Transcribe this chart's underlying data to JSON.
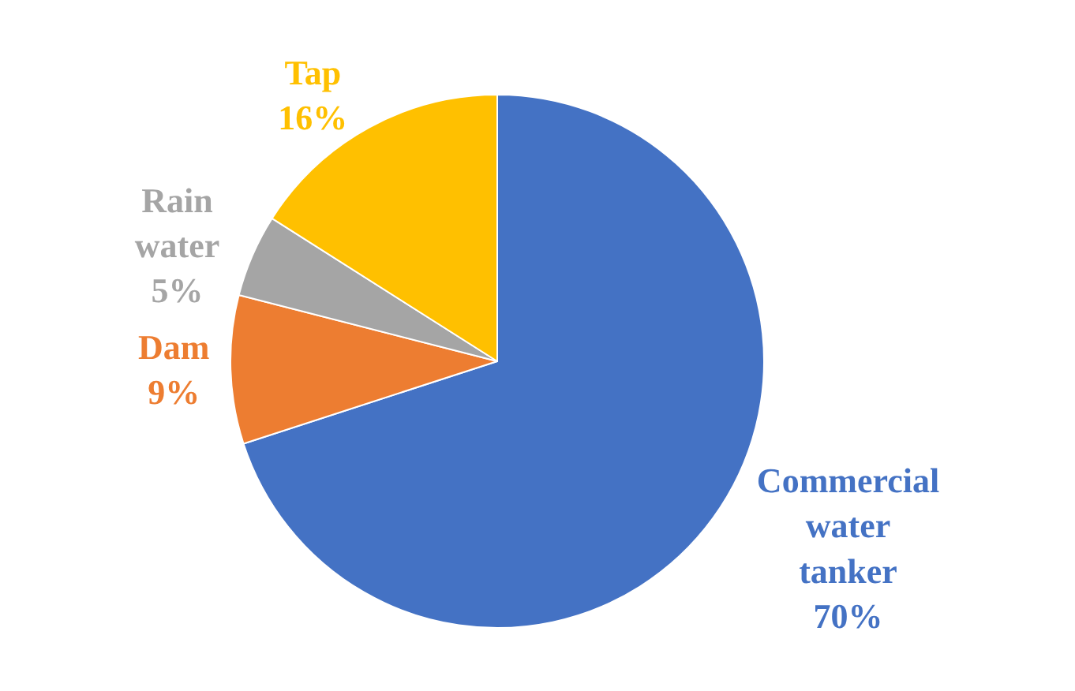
{
  "chart_data": {
    "type": "pie",
    "categories": [
      "Commercial water tanker",
      "Dam",
      "Rain water",
      "Tap"
    ],
    "values": [
      70,
      9,
      5,
      16
    ],
    "value_labels": [
      "70%",
      "9%",
      "5%",
      "16%"
    ],
    "colors": [
      "#4472c4",
      "#ed7d31",
      "#a5a5a5",
      "#ffc000"
    ],
    "legend": false
  }
}
